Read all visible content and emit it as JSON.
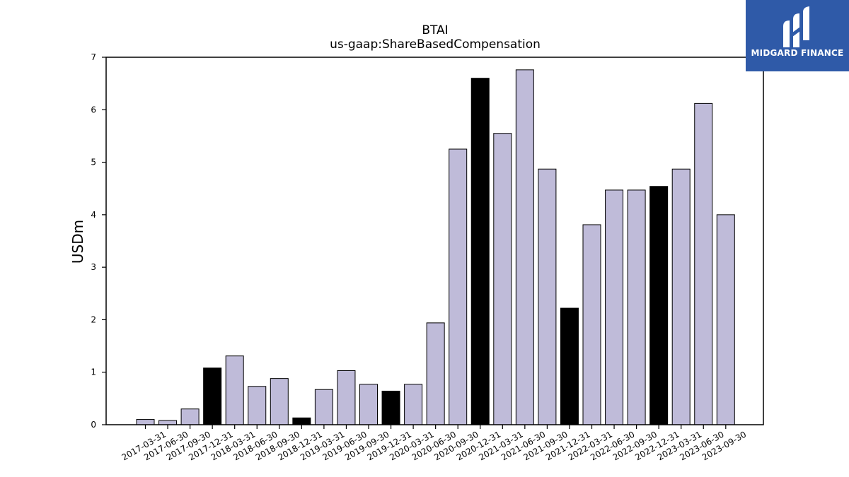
{
  "branding": {
    "logo_text": "MIDGARD FINANCE"
  },
  "colors": {
    "bar_default": "#bfbbd9",
    "bar_highlight": "#000000",
    "bar_edge": "#000000",
    "logo_bg": "#2f5aa8"
  },
  "chart_data": {
    "type": "bar",
    "title": "BTAI",
    "subtitle": "us-gaap:ShareBasedCompensation",
    "xlabel": "",
    "ylabel": "USDm",
    "ylim": [
      0,
      7
    ],
    "yticks": [
      "0",
      "1",
      "2",
      "3",
      "4",
      "5",
      "6",
      "7"
    ],
    "grid": false,
    "categories": [
      "2017-03-31",
      "2017-06-30",
      "2017-09-30",
      "2017-12-31",
      "2018-03-31",
      "2018-06-30",
      "2018-09-30",
      "2018-12-31",
      "2019-03-31",
      "2019-06-30",
      "2019-09-30",
      "2019-12-31",
      "2020-03-31",
      "2020-06-30",
      "2020-09-30",
      "2020-12-31",
      "2021-03-31",
      "2021-06-30",
      "2021-09-30",
      "2021-12-31",
      "2022-03-31",
      "2022-06-30",
      "2022-09-30",
      "2022-12-31",
      "2023-03-31",
      "2023-06-30",
      "2023-09-30"
    ],
    "values": [
      0.1,
      0.08,
      0.3,
      1.08,
      1.31,
      0.73,
      0.88,
      0.13,
      0.67,
      1.03,
      0.77,
      0.64,
      0.77,
      1.94,
      5.25,
      6.6,
      5.55,
      6.76,
      4.87,
      2.22,
      3.81,
      4.47,
      4.47,
      4.54,
      4.87,
      6.12,
      4.0
    ],
    "highlight": [
      false,
      false,
      false,
      true,
      false,
      false,
      false,
      true,
      false,
      false,
      false,
      true,
      false,
      false,
      false,
      true,
      false,
      false,
      false,
      true,
      false,
      false,
      false,
      true,
      false,
      false,
      false
    ]
  }
}
